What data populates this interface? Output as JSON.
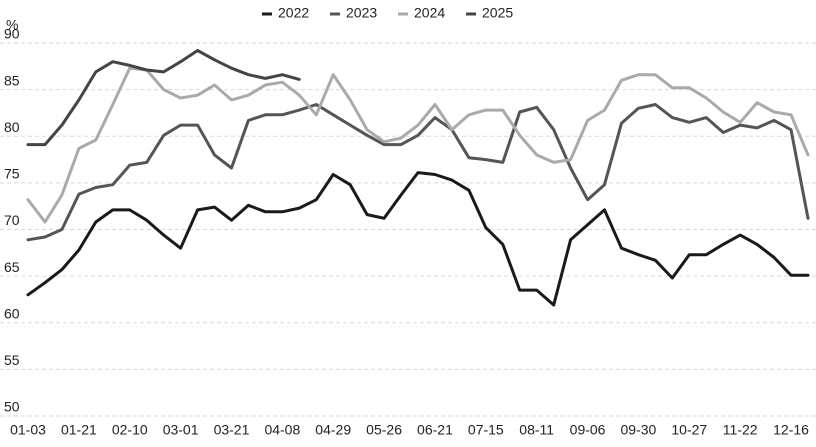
{
  "chart_data": {
    "type": "line",
    "y_unit": "%",
    "categories": [
      "01-03",
      null,
      null,
      "01-21",
      null,
      null,
      "02-10",
      null,
      null,
      "03-01",
      null,
      null,
      "03-21",
      null,
      null,
      "04-08",
      null,
      null,
      "04-29",
      null,
      null,
      "05-26",
      null,
      null,
      "06-21",
      null,
      null,
      "07-15",
      null,
      null,
      "08-11",
      null,
      null,
      "09-06",
      null,
      null,
      "09-30",
      null,
      null,
      "10-27",
      null,
      null,
      "11-22",
      null,
      null,
      "12-16",
      null
    ],
    "ylim": [
      50,
      90
    ],
    "yticks": [
      50,
      55,
      60,
      65,
      70,
      75,
      80,
      85,
      90
    ],
    "grid": true,
    "legend": "top",
    "series": [
      {
        "name": "2022",
        "color": "#1a1a1a",
        "values": [
          63,
          64.3,
          65.7,
          67.8,
          70.8,
          72.1,
          72.1,
          71,
          69.4,
          68,
          72.1,
          72.4,
          71,
          72.6,
          71.9,
          71.9,
          72.3,
          73.2,
          75.9,
          74.8,
          71.6,
          71.2,
          73.7,
          76.1,
          75.9,
          75.3,
          74.2,
          70.2,
          68.4,
          63.5,
          63.5,
          61.9,
          68.9,
          70.5,
          72.1,
          68,
          67.3,
          66.7,
          64.8,
          67.3,
          67.3,
          68.4,
          69.4,
          68.4,
          67,
          65.1,
          65.1
        ]
      },
      {
        "name": "2023",
        "color": "#555555",
        "values": [
          68.9,
          69.2,
          70,
          73.8,
          74.5,
          74.8,
          76.9,
          77.2,
          80.1,
          81.2,
          81.2,
          78,
          76.6,
          81.7,
          82.3,
          82.3,
          82.8,
          83.4,
          82.3,
          81.2,
          80.1,
          79.1,
          79.1,
          80.1,
          82,
          80.7,
          77.7,
          77.5,
          77.2,
          82.6,
          83.1,
          80.7,
          76.6,
          73.2,
          74.8,
          81.4,
          83,
          83.4,
          82,
          81.5,
          82,
          80.4,
          81.2,
          80.9,
          81.7,
          80.7,
          71.2
        ]
      },
      {
        "name": "2024",
        "color": "#aaaaaa",
        "values": [
          73.2,
          70.8,
          73.7,
          78.7,
          79.6,
          83.4,
          87.3,
          87.1,
          85,
          84.1,
          84.4,
          85.5,
          83.9,
          84.4,
          85.5,
          85.8,
          84.4,
          82.3,
          86.6,
          83.9,
          80.7,
          79.4,
          79.8,
          81.2,
          83.4,
          80.7,
          82.3,
          82.8,
          82.8,
          80.1,
          78,
          77.2,
          77.5,
          81.7,
          82.8,
          86,
          86.6,
          86.6,
          85.2,
          85.2,
          84.1,
          82.6,
          81.5,
          83.6,
          82.6,
          82.3,
          78
        ]
      },
      {
        "name": "2025",
        "color": "#444444",
        "values": [
          79.1,
          79.1,
          81.2,
          83.9,
          86.9,
          88,
          87.6,
          87.1,
          86.9,
          88,
          89.2,
          88.2,
          87.3,
          86.6,
          86.2,
          86.6,
          86.1,
          null,
          null,
          null,
          null,
          null,
          null,
          null,
          null,
          null,
          null,
          null,
          null,
          null,
          null,
          null,
          null,
          null,
          null,
          null,
          null,
          null,
          null,
          null,
          null,
          null,
          null,
          null,
          null,
          null,
          null
        ]
      }
    ]
  }
}
